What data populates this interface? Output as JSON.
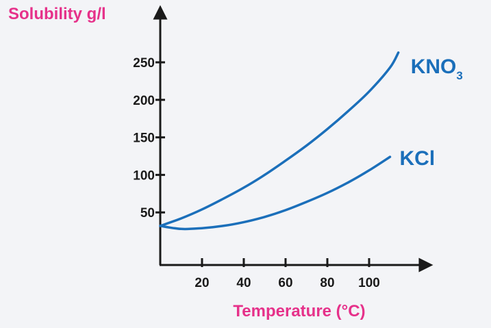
{
  "colors": {
    "background": "#f3f4f7",
    "axis": "#1a1a1a",
    "series": "#1b6fba",
    "axis_title": "#e6318a"
  },
  "chart_data": {
    "type": "line",
    "title": "",
    "ylabel": "Solubility g/l",
    "xlabel": "Temperature (°C)",
    "xticks": [
      20,
      40,
      60,
      80,
      100
    ],
    "yticks": [
      50,
      100,
      150,
      200,
      250
    ],
    "xlim": [
      0,
      130
    ],
    "ylim": [
      -50,
      290
    ],
    "grid": false,
    "series": [
      {
        "name": "KNO",
        "name_sub": "3",
        "x": [
          0,
          10,
          20,
          30,
          40,
          50,
          60,
          70,
          80,
          90,
          100,
          110,
          114
        ],
        "y": [
          32,
          42,
          54,
          68,
          83,
          100,
          119,
          139,
          161,
          185,
          211,
          243,
          263
        ]
      },
      {
        "name": "KCl",
        "x": [
          0,
          10,
          20,
          30,
          40,
          50,
          60,
          70,
          80,
          90,
          100,
          110
        ],
        "y": [
          32,
          28,
          29,
          32,
          37,
          44,
          53,
          64,
          76,
          90,
          106,
          124
        ]
      }
    ]
  }
}
